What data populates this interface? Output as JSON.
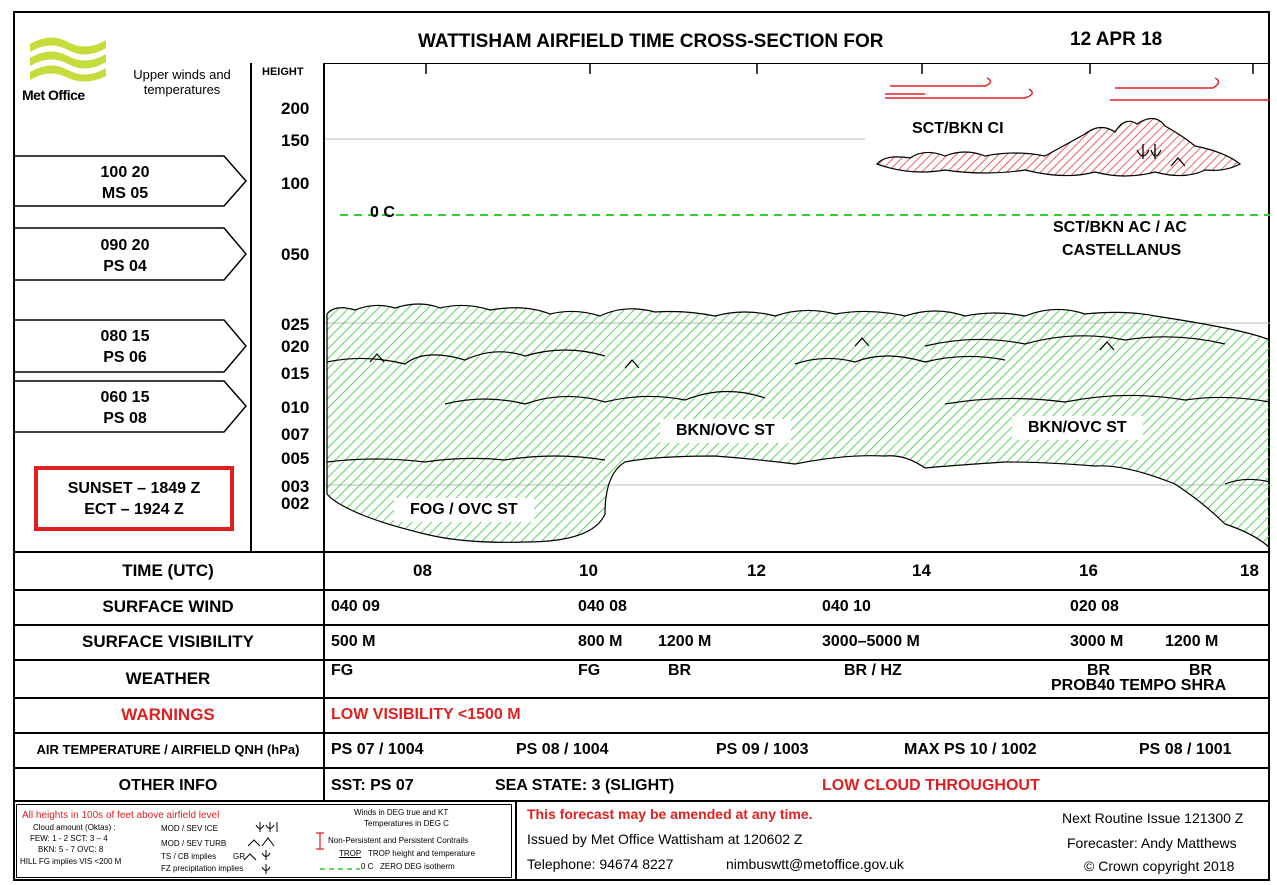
{
  "header": {
    "title": "WATTISHAM AIRFIELD TIME CROSS-SECTION FOR",
    "date": "12 APR 18",
    "logo_text": "Met Office",
    "upper_winds_label": "Upper winds and temperatures",
    "height_label": "HEIGHT"
  },
  "upper_winds": [
    {
      "line1": "100 20",
      "line2": "MS 05"
    },
    {
      "line1": "090 20",
      "line2": "PS 04"
    },
    {
      "line1": "080 15",
      "line2": "PS 06"
    },
    {
      "line1": "060 15",
      "line2": "PS 08"
    }
  ],
  "sun": {
    "line1": "SUNSET – 1849 Z",
    "line2": "ECT – 1924 Z"
  },
  "heights": [
    "200",
    "150",
    "100",
    "050",
    "025",
    "020",
    "015",
    "010",
    "007",
    "005",
    "003",
    "002"
  ],
  "chart": {
    "zero_deg_label": "0 C",
    "labels": {
      "ci": "SCT/BKN CI",
      "ac1": "SCT/BKN AC / AC",
      "ac2": "CASTELLANUS",
      "st1": "BKN/OVC ST",
      "st2": "BKN/OVC ST",
      "fog": "FOG / OVC ST"
    },
    "colors": {
      "cloud": "#33cc33",
      "cirrus": "#e02020",
      "zero_line": "#33cc33"
    }
  },
  "rows": {
    "time": {
      "label": "TIME (UTC)",
      "ticks": [
        "08",
        "10",
        "12",
        "14",
        "16",
        "18"
      ]
    },
    "surface_wind": {
      "label": "SURFACE WIND",
      "values": [
        "040 09",
        "040 08",
        "040 10",
        "020 08"
      ]
    },
    "surface_visibility": {
      "label": "SURFACE VISIBILITY",
      "values": [
        "500 M",
        "800 M",
        "1200 M",
        "3000–5000 M",
        "3000 M",
        "1200 M"
      ]
    },
    "weather": {
      "label": "WEATHER",
      "values": [
        "FG",
        "FG",
        "BR",
        "BR / HZ",
        "BR",
        "BR"
      ],
      "extra": "PROB40 TEMPO SHRA"
    },
    "warnings": {
      "label": "WARNINGS",
      "value": "LOW VISIBILITY <1500 M"
    },
    "air_temp": {
      "label": "AIR TEMPERATURE / AIRFIELD QNH (hPa)",
      "values": [
        "PS 07 / 1004",
        "PS 08 / 1004",
        "PS 09 / 1003",
        "MAX PS 10 / 1002",
        "PS 08 / 1001"
      ]
    },
    "other_info": {
      "label": "OTHER INFO",
      "sst": "SST: PS 07",
      "sea_state": "SEA STATE: 3 (SLIGHT)",
      "note": "LOW CLOUD THROUGHOUT"
    }
  },
  "footer": {
    "legend": {
      "heights_note": "All heights in 100s of feet above airfield level",
      "cloud_amount": "Cloud amount (Oktas) :",
      "few_sct": "FEW: 1 - 2  SCT: 3 – 4",
      "bkn_ovc": "BKN: 5 - 7  OVC:  8",
      "hill_fg": "HILL FG implies VIS <200 M",
      "ice": "MOD / SEV ICE",
      "turb": "MOD / SEV TURB",
      "ts_cb": "TS / CB implies",
      "gr": "GR",
      "fz": "FZ precipitation implies",
      "winds_note": "Winds in DEG true and KT",
      "temps_note": "Temperatures in DEG C",
      "contrails": "Non-Persistent and Persistent Contrails",
      "trop": "TROP",
      "trop_desc": "TROP height and temperature",
      "zero_c": "0 C",
      "zero_desc": "ZERO DEG isotherm"
    },
    "amend": "This forecast may be amended at any time.",
    "issued": "Issued by Met Office Wattisham at  120602 Z",
    "telephone": "Telephone: 94674 8227",
    "email": "nimbuswtt@metoffice.gov.uk",
    "next_issue": "Next Routine Issue 121300 Z",
    "forecaster": "Forecaster: Andy Matthews",
    "copyright": "©  Crown copyright 2018"
  }
}
